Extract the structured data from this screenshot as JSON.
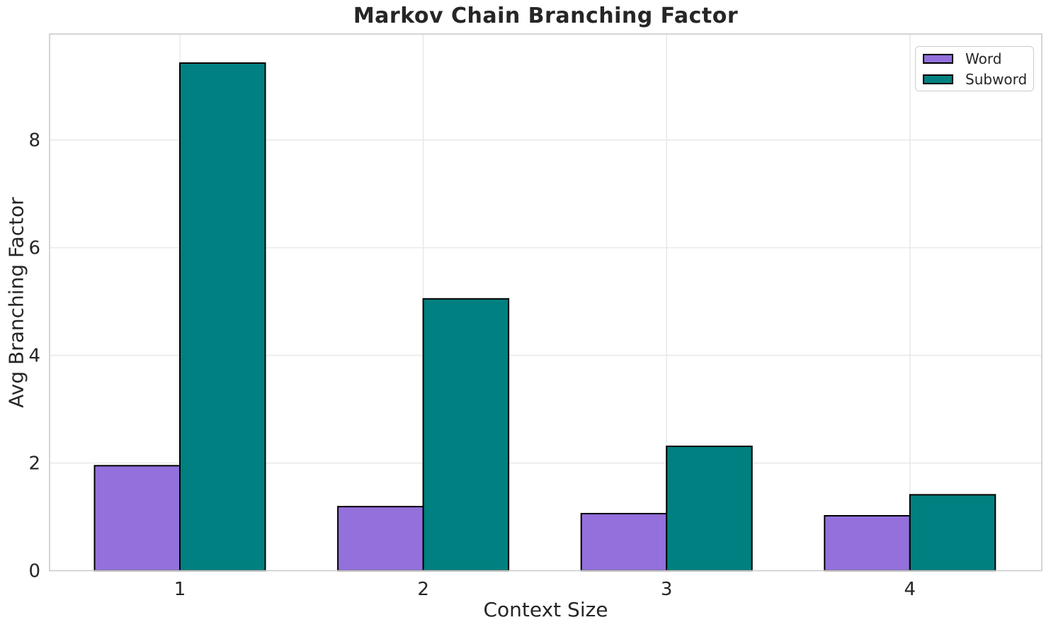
{
  "chart_data": {
    "type": "bar",
    "title": "Markov Chain Branching Factor",
    "xlabel": "Context Size",
    "ylabel": "Avg Branching Factor",
    "categories": [
      "1",
      "2",
      "3",
      "4"
    ],
    "series": [
      {
        "name": "Word",
        "color": "#9370DB",
        "values": [
          1.95,
          1.19,
          1.06,
          1.02
        ]
      },
      {
        "name": "Subword",
        "color": "#008080",
        "values": [
          9.43,
          5.05,
          2.31,
          1.41
        ]
      }
    ],
    "yticks": [
      0,
      2,
      4,
      6,
      8
    ],
    "ylim": [
      0,
      9.97
    ],
    "grid": true,
    "legend_position": "upper right",
    "colors": {
      "bar_edge": "#000000",
      "grid": "#e9e9e9",
      "spine": "#cbcbcb",
      "text": "#262626",
      "background": "#ffffff"
    }
  }
}
